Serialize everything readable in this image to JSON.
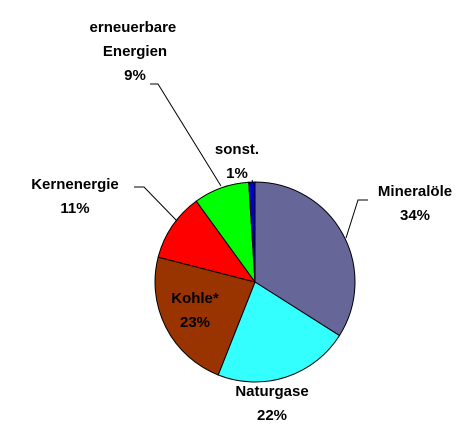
{
  "chart_data": {
    "type": "pie",
    "categories": [
      "Mineralöle",
      "Naturgase",
      "Kohle*",
      "Kernenergie",
      "erneuerbare Energien",
      "sonst."
    ],
    "values": [
      34,
      22,
      23,
      11,
      9,
      1
    ],
    "value_labels": [
      "34%",
      "22%",
      "23%",
      "11%",
      "9%",
      "1%"
    ],
    "colors": [
      "#666699",
      "#33ffff",
      "#993300",
      "#ff0000",
      "#00ff00",
      "#0000cc"
    ]
  }
}
